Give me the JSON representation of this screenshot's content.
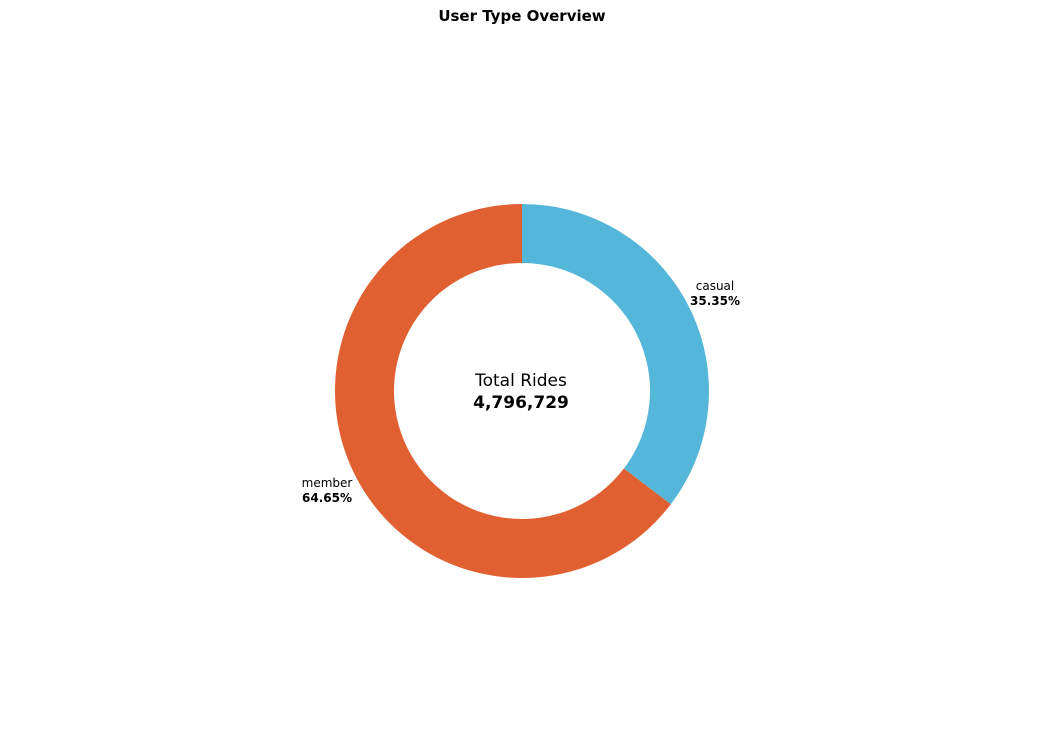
{
  "chart_data": {
    "type": "pie",
    "title": "User Type Overview",
    "donut": true,
    "center": {
      "label": "Total Rides",
      "value": "4,796,729"
    },
    "slices": [
      {
        "label": "casual",
        "percent_text": "35.35%",
        "value": 35.35,
        "color": "#54B7DA"
      },
      {
        "label": "member",
        "percent_text": "64.65%",
        "value": 64.65,
        "color": "#E16032"
      }
    ],
    "start_angle": "top",
    "direction": "clockwise"
  }
}
